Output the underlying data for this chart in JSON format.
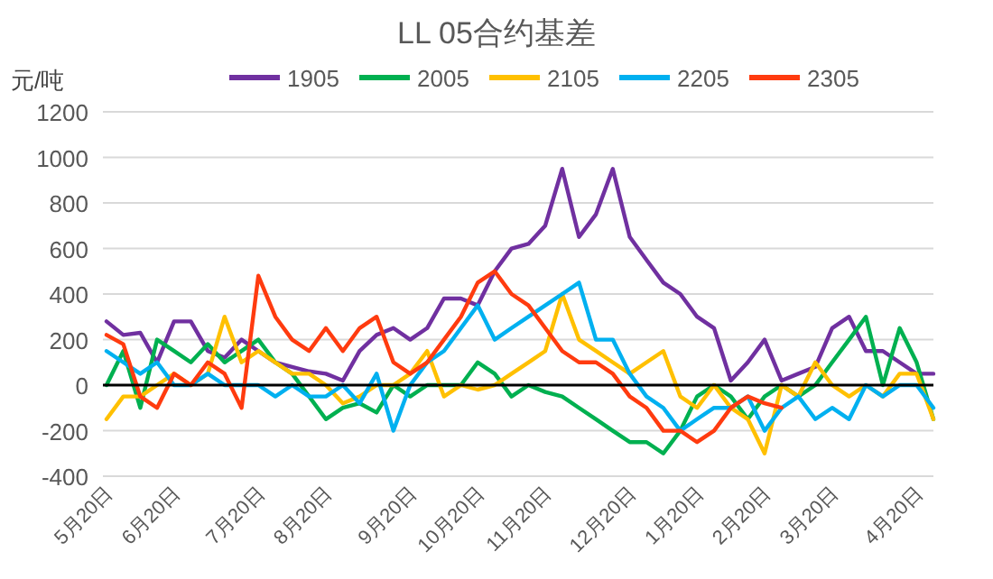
{
  "chart_data": {
    "type": "line",
    "title": "LL 05合约基差",
    "ylabel": "元/吨",
    "categories": [
      "5月20日",
      null,
      null,
      null,
      "6月20日",
      null,
      null,
      null,
      null,
      "7月20日",
      null,
      null,
      null,
      "8月20日",
      null,
      null,
      null,
      null,
      "9月20日",
      null,
      null,
      null,
      "10月20日",
      null,
      null,
      null,
      "11月20日",
      null,
      null,
      null,
      null,
      "12月20日",
      null,
      null,
      null,
      "1月20日",
      null,
      null,
      null,
      "2月20日",
      null,
      null,
      null,
      "3月20日",
      null,
      null,
      null,
      null,
      "4月20日",
      null
    ],
    "series": [
      {
        "name": "1905",
        "color": "#7030a0",
        "values": [
          280,
          220,
          230,
          100,
          280,
          280,
          150,
          120,
          200,
          150,
          100,
          80,
          60,
          50,
          20,
          150,
          220,
          250,
          200,
          250,
          380,
          380,
          350,
          500,
          600,
          620,
          700,
          950,
          650,
          750,
          950,
          650,
          550,
          450,
          400,
          300,
          250,
          20,
          100,
          200,
          20,
          50,
          80,
          250,
          300,
          150,
          150,
          100,
          50,
          50
        ]
      },
      {
        "name": "2005",
        "color": "#00b050",
        "values": [
          0,
          150,
          -100,
          200,
          150,
          100,
          180,
          100,
          150,
          200,
          100,
          50,
          -50,
          -150,
          -100,
          -80,
          -120,
          0,
          -50,
          0,
          0,
          0,
          100,
          50,
          -50,
          0,
          -30,
          -50,
          -100,
          -150,
          -200,
          -250,
          -250,
          -300,
          -200,
          -50,
          0,
          -50,
          -150,
          -50,
          0,
          -50,
          0,
          100,
          200,
          300,
          0,
          250,
          100,
          -150
        ]
      },
      {
        "name": "2105",
        "color": "#ffc000",
        "values": [
          -150,
          -50,
          -50,
          0,
          50,
          0,
          50,
          300,
          100,
          150,
          100,
          50,
          50,
          0,
          -80,
          -50,
          0,
          0,
          50,
          150,
          -50,
          0,
          -20,
          0,
          50,
          100,
          150,
          400,
          200,
          150,
          100,
          50,
          100,
          150,
          -50,
          -100,
          0,
          -100,
          -150,
          -300,
          0,
          -50,
          100,
          0,
          -50,
          0,
          -50,
          50,
          50,
          -150
        ]
      },
      {
        "name": "2205",
        "color": "#00b0f0",
        "values": [
          150,
          100,
          50,
          100,
          0,
          0,
          50,
          0,
          0,
          0,
          -50,
          0,
          -50,
          -50,
          0,
          -80,
          50,
          -200,
          0,
          100,
          150,
          250,
          350,
          200,
          250,
          300,
          350,
          400,
          450,
          200,
          200,
          50,
          -50,
          -100,
          -200,
          -150,
          -100,
          -100,
          -50,
          -200,
          -100,
          -50,
          -150,
          -100,
          -150,
          0,
          -50,
          0,
          0,
          -100
        ]
      },
      {
        "name": "2305",
        "color": "#ff3b0f",
        "values": [
          220,
          180,
          -50,
          -100,
          50,
          0,
          100,
          50,
          -100,
          480,
          300,
          200,
          150,
          250,
          150,
          250,
          300,
          100,
          50,
          100,
          200,
          300,
          450,
          500,
          400,
          350,
          250,
          150,
          100,
          100,
          50,
          -50,
          -100,
          -200,
          -200,
          -250,
          -200,
          -100,
          -50,
          -80,
          -100,
          null,
          null,
          null,
          null,
          null,
          null,
          null,
          null,
          null
        ]
      }
    ],
    "ylim": [
      -400,
      1200
    ],
    "yticks": [
      -400,
      -200,
      0,
      200,
      400,
      600,
      800,
      1000,
      1200
    ],
    "ref_lines": [
      {
        "axis": "y",
        "value": 0,
        "color": "#000000"
      }
    ],
    "grid": "y",
    "legend": "top"
  }
}
